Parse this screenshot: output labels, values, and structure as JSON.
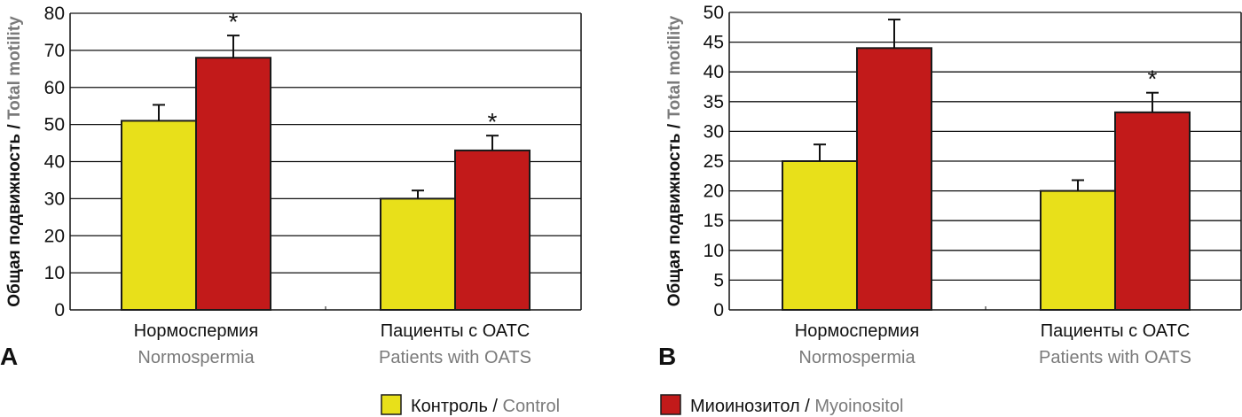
{
  "chart_data": [
    {
      "type": "bar",
      "panel": "A",
      "ylabel_ru": "Общая подвижность",
      "ylabel_sep": " / ",
      "ylabel_en": "Total motility",
      "ylim": [
        0,
        80
      ],
      "yticks": [
        0,
        10,
        20,
        30,
        40,
        50,
        60,
        70,
        80
      ],
      "grid": true,
      "categories": [
        {
          "ru": "Нормоспермия",
          "en": "Normospermia"
        },
        {
          "ru": "Пациенты с ОАТС",
          "en": "Patients with OATS"
        }
      ],
      "series": [
        {
          "name": "Control",
          "values": [
            51,
            30
          ],
          "error_upper": [
            55.3,
            32.2
          ],
          "significant": [
            false,
            false
          ]
        },
        {
          "name": "Myoinositol",
          "values": [
            68,
            43
          ],
          "error_upper": [
            74,
            47
          ],
          "significant": [
            true,
            true
          ]
        }
      ]
    },
    {
      "type": "bar",
      "panel": "B",
      "ylabel_ru": "Общая подвижность",
      "ylabel_sep": " / ",
      "ylabel_en": "Total motility",
      "ylim": [
        0,
        50
      ],
      "yticks": [
        0,
        5,
        10,
        15,
        20,
        25,
        30,
        35,
        40,
        45,
        50
      ],
      "grid": true,
      "categories": [
        {
          "ru": "Нормоспермия",
          "en": "Normospermia"
        },
        {
          "ru": "Пациенты с ОАТС",
          "en": "Patients with OATS"
        }
      ],
      "series": [
        {
          "name": "Control",
          "values": [
            25,
            20
          ],
          "error_upper": [
            27.8,
            21.8
          ],
          "significant": [
            false,
            false
          ]
        },
        {
          "name": "Myoinositol",
          "values": [
            44,
            33.2
          ],
          "error_upper": [
            48.8,
            36.5
          ],
          "significant": [
            false,
            true
          ]
        }
      ]
    }
  ],
  "significance_marker": "*",
  "legend": {
    "placement": "bottom-center",
    "items": [
      {
        "ru": "Контроль",
        "sep": " / ",
        "en": "Control",
        "color": "#e8e01a"
      },
      {
        "ru": "Миоинозитол",
        "sep": " / ",
        "en": "Myoinositol",
        "color": "#c21a1a"
      }
    ]
  },
  "colors": {
    "control": "#e8e01a",
    "myoinositol": "#c21a1a",
    "axis": "#111111",
    "en_text": "#7a7a7a"
  }
}
